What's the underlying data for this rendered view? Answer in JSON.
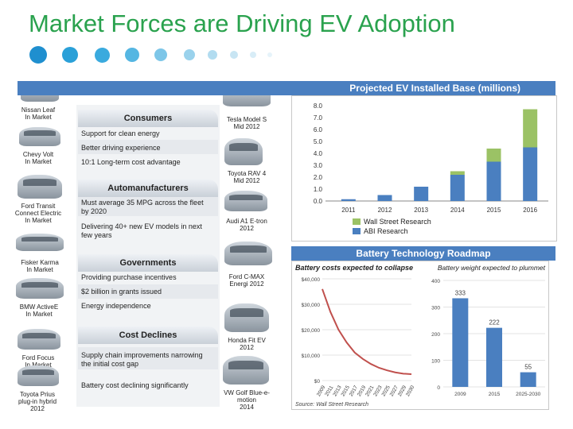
{
  "title": "Market Forces are Driving EV Adoption",
  "dots": [
    {
      "color": "#1f8fcf"
    },
    {
      "color": "#2aa0d8"
    },
    {
      "color": "#3aaade"
    },
    {
      "color": "#55b6e2"
    },
    {
      "color": "#7dc6e8"
    },
    {
      "color": "#9ad2ec"
    },
    {
      "color": "#b2dcf0"
    },
    {
      "color": "#c8e5f3"
    },
    {
      "color": "#d8edf7"
    },
    {
      "color": "#e6f3fa"
    }
  ],
  "cars_left": [
    {
      "caption": "Nissan Leaf\nIn Market"
    },
    {
      "caption": "Chevy Volt\nIn Market"
    },
    {
      "caption": "Ford Transit\nConnect Electric\nIn Market"
    },
    {
      "caption": "Fisker Karma\nIn Market"
    },
    {
      "caption": "BMW ActiveE\nIn Market"
    },
    {
      "caption": "Ford Focus\nIn Market"
    },
    {
      "caption": "Toyota Prius\nplug-in hybrid\n2012"
    }
  ],
  "cars_right": [
    {
      "caption": "Tesla Model S\nMid 2012"
    },
    {
      "caption": "Toyota RAV 4\nMid 2012"
    },
    {
      "caption": "Audi A1 E-tron\n2012"
    },
    {
      "caption": "Ford C-MAX\nEnergi 2012"
    },
    {
      "caption": "Honda Fit EV\n2012"
    },
    {
      "caption": "VW Golf Blue-e-\nmotion\n2014"
    }
  ],
  "sections": {
    "consumers": {
      "header": "Consumers",
      "items": [
        "Support for clean energy",
        "Better driving experience",
        "10:1 Long-term cost advantage"
      ]
    },
    "automanufacturers": {
      "header": "Automanufacturers",
      "items": [
        "Must average 35 MPG across the fleet by 2020",
        "Delivering 40+ new EV models in next few years"
      ]
    },
    "governments": {
      "header": "Governments",
      "items": [
        "Providing purchase incentives",
        "$2 billion in grants issued",
        "Energy independence"
      ]
    },
    "cost_declines": {
      "header": "Cost Declines",
      "items": [
        "Supply chain improvements narrowing the initial cost gap",
        "Battery cost declining significantly"
      ]
    }
  },
  "ev_panel": {
    "header": "Projected EV Installed Base (millions)"
  },
  "roadmap_panel": {
    "header": "Battery Technology Roadmap",
    "left_title": "Battery costs expected to collapse",
    "right_title": "Battery weight expected to plummet",
    "source": "Source: Wall Street Research"
  },
  "colors": {
    "title": "#2aa24e",
    "band": "#4a7fc0",
    "wall_street": "#9bc265",
    "abi": "#4a7fc0",
    "line": "#c0504d",
    "weight_bar": "#4a7fc0"
  },
  "chart_data": [
    {
      "type": "bar",
      "title": "Projected EV Installed Base (millions)",
      "categories": [
        "2011",
        "2012",
        "2013",
        "2014",
        "2015",
        "2016"
      ],
      "series": [
        {
          "name": "Wall Street Research",
          "values": [
            0.0,
            0.0,
            0.0,
            0.3,
            1.1,
            3.2
          ]
        },
        {
          "name": "ABI Research",
          "values": [
            0.15,
            0.5,
            1.2,
            2.2,
            3.3,
            4.5
          ]
        }
      ],
      "yticks": [
        "0.0",
        "1.0",
        "2.0",
        "3.0",
        "4.0",
        "5.0",
        "6.0",
        "7.0",
        "8.0"
      ],
      "ylim": [
        0,
        8
      ],
      "stacked": true,
      "legend": "bottom-right"
    },
    {
      "type": "line",
      "title": "Battery costs expected to collapse",
      "x": [
        "2009",
        "2011",
        "2013",
        "2015",
        "2017",
        "2019",
        "2021",
        "2023",
        "2025",
        "2027",
        "2029",
        "2030"
      ],
      "values": [
        36000,
        27000,
        20000,
        15000,
        11000,
        8500,
        6500,
        5000,
        4000,
        3200,
        2700,
        2500
      ],
      "yticks": [
        "$0",
        "$10,000",
        "$20,000",
        "$30,000",
        "$40,000"
      ],
      "ylim": [
        0,
        40000
      ]
    },
    {
      "type": "bar",
      "title": "Battery weight expected to plummet",
      "categories": [
        "2009",
        "2015",
        "2025-2030"
      ],
      "values": [
        333,
        222,
        55
      ],
      "data_labels": [
        "333",
        "222",
        "55"
      ],
      "yticks": [
        "0",
        "100",
        "200",
        "300",
        "400"
      ],
      "ylim": [
        0,
        400
      ]
    }
  ]
}
